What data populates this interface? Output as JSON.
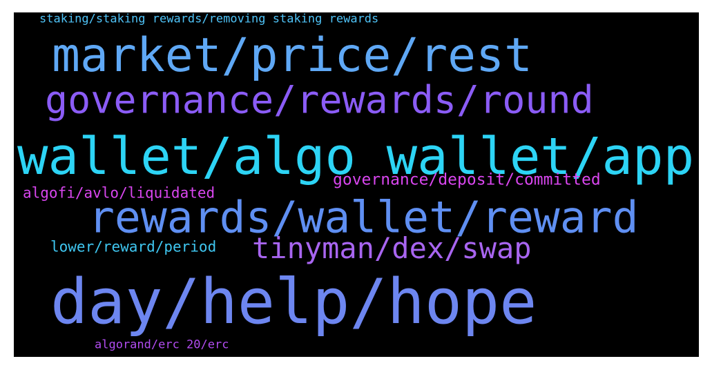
{
  "background": "#000000",
  "words": [
    {
      "text": "staking/staking rewards/removing staking rewards",
      "color": "#4fc3f7"
    },
    {
      "text": "market/price/rest",
      "color": "#5fa8f5"
    },
    {
      "text": "governance/rewards/round",
      "color": "#8b5cf6"
    },
    {
      "text": "wallet/algo wallet/app",
      "color": "#2dd4f5"
    },
    {
      "text": "governance/deposit/committed",
      "color": "#d946ef"
    },
    {
      "text": "algofi/avlo/liquidated",
      "color": "#d946ef"
    },
    {
      "text": "rewards/wallet/reward",
      "color": "#5f8ff2"
    },
    {
      "text": "lower/reward/period",
      "color": "#3fc6f0"
    },
    {
      "text": "tinyman/dex/swap",
      "color": "#a865f0"
    },
    {
      "text": "day/help/hope",
      "color": "#6d86f0"
    },
    {
      "text": "algorand/erc 20/erc",
      "color": "#b14cf0"
    }
  ]
}
